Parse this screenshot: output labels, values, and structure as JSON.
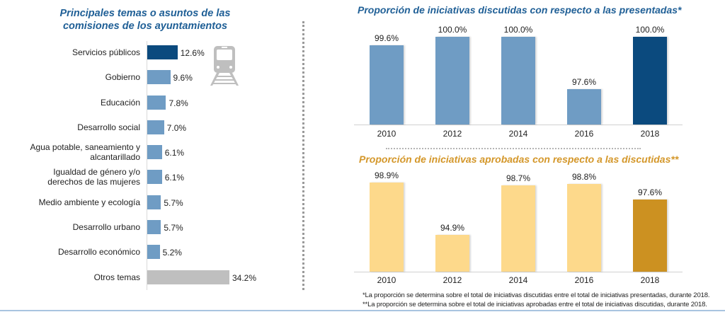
{
  "colors": {
    "title_blue": "#1f5f96",
    "title_gold": "#d4972a",
    "bar_dark_blue": "#0b4a7e",
    "bar_light_blue": "#6f9cc4",
    "bar_gray": "#bfbfbf",
    "bar_light_gold": "#fdd98b",
    "bar_dark_gold": "#cc9121",
    "icon_gray": "#bfbfbf"
  },
  "icons": {
    "train": "train-icon"
  },
  "chart_data": [
    {
      "type": "bar",
      "orientation": "horizontal",
      "title": "Principales temas o asuntos de las comisiones de los ayuntamientos",
      "title_lines": [
        "Principales temas o asuntos de las",
        "comisiones de los ayuntamientos"
      ],
      "categories": [
        "Servicios públicos",
        "Gobierno",
        "Educación",
        "Desarrollo social",
        "Agua potable, saneamiento y alcantarillado",
        "Igualdad de género y/o derechos de las mujeres",
        "Medio ambiente y ecología",
        "Desarrollo urbano",
        "Desarrollo económico",
        "Otros temas"
      ],
      "category_lines": [
        [
          "Servicios públicos"
        ],
        [
          "Gobierno"
        ],
        [
          "Educación"
        ],
        [
          "Desarrollo social"
        ],
        [
          "Agua potable, saneamiento y",
          "alcantarillado"
        ],
        [
          "Igualdad de género y/o",
          "derechos de las mujeres"
        ],
        [
          "Medio ambiente y ecología"
        ],
        [
          "Desarrollo urbano"
        ],
        [
          "Desarrollo económico"
        ],
        [
          "Otros temas"
        ]
      ],
      "values": [
        12.6,
        9.6,
        7.8,
        7.0,
        6.1,
        6.1,
        5.7,
        5.7,
        5.2,
        34.2
      ],
      "labels": [
        "12.6%",
        "9.6%",
        "7.8%",
        "7.0%",
        "6.1%",
        "6.1%",
        "5.7%",
        "5.7%",
        "5.2%",
        "34.2%"
      ],
      "bar_styles": [
        "highlight",
        "normal",
        "normal",
        "normal",
        "normal",
        "normal",
        "normal",
        "normal",
        "normal",
        "other"
      ],
      "xlim": [
        0,
        35
      ],
      "unit": "%",
      "grid": false
    },
    {
      "type": "bar",
      "title": "Proporción de iniciativas discutidas con respecto a las presentadas*",
      "categories": [
        "2010",
        "2012",
        "2014",
        "2016",
        "2018"
      ],
      "values": [
        99.6,
        100.0,
        100.0,
        97.6,
        100.0
      ],
      "labels": [
        "99.6%",
        "100.0%",
        "100.0%",
        "97.6%",
        "100.0%"
      ],
      "bar_styles": [
        "normal",
        "normal",
        "normal",
        "normal",
        "highlight"
      ],
      "ylim": [
        96.0,
        100.0
      ],
      "unit": "%",
      "grid": false
    },
    {
      "type": "bar",
      "title": "Proporción de iniciativas aprobadas con respecto a las discutidas**",
      "categories": [
        "2010",
        "2012",
        "2014",
        "2016",
        "2018"
      ],
      "values": [
        98.9,
        94.9,
        98.7,
        98.8,
        97.6
      ],
      "labels": [
        "98.9%",
        "94.9%",
        "98.7%",
        "98.8%",
        "97.6%"
      ],
      "bar_styles": [
        "normal",
        "normal",
        "normal",
        "normal",
        "highlight"
      ],
      "ylim": [
        92.1,
        98.9
      ],
      "unit": "%",
      "grid": false
    }
  ],
  "footnotes": [
    "*La proporción se determina sobre el total de iniciativas discutidas entre el total de iniciativas presentadas, durante 2018.",
    "**La proporción se determina sobre el total de iniciativas aprobadas entre el total de iniciativas discutidas, durante 2018."
  ]
}
